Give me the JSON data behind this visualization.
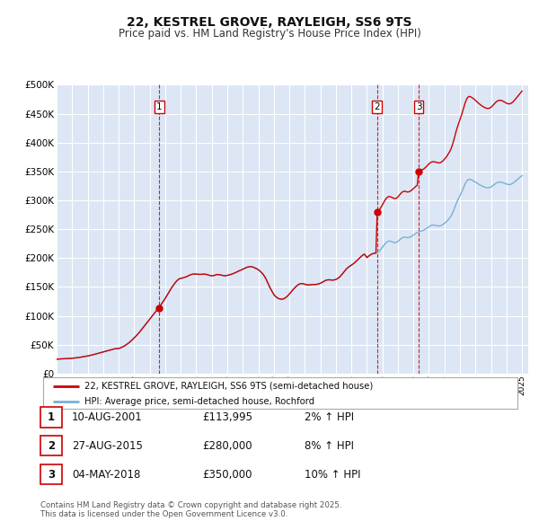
{
  "title": "22, KESTREL GROVE, RAYLEIGH, SS6 9TS",
  "subtitle": "Price paid vs. HM Land Registry's House Price Index (HPI)",
  "title_fontsize": 10,
  "subtitle_fontsize": 8.5,
  "background_color": "#ffffff",
  "plot_bg_color": "#dce6f5",
  "grid_color": "#ffffff",
  "red_line_color": "#cc0000",
  "blue_line_color": "#7ab0d4",
  "ylim": [
    0,
    500000
  ],
  "yticks": [
    0,
    50000,
    100000,
    150000,
    200000,
    250000,
    300000,
    350000,
    400000,
    450000,
    500000
  ],
  "ytick_labels": [
    "£0",
    "£50K",
    "£100K",
    "£150K",
    "£200K",
    "£250K",
    "£300K",
    "£350K",
    "£400K",
    "£450K",
    "£500K"
  ],
  "sale_dates": [
    2001.608,
    2015.648,
    2018.339
  ],
  "sale_prices": [
    113995,
    280000,
    350000
  ],
  "sale_labels": [
    "1",
    "2",
    "3"
  ],
  "vline_color": "#cc0000",
  "legend_entries": [
    "22, KESTREL GROVE, RAYLEIGH, SS6 9TS (semi-detached house)",
    "HPI: Average price, semi-detached house, Rochford"
  ],
  "table_rows": [
    [
      "1",
      "10-AUG-2001",
      "£113,995",
      "2% ↑ HPI"
    ],
    [
      "2",
      "27-AUG-2015",
      "£280,000",
      "8% ↑ HPI"
    ],
    [
      "3",
      "04-MAY-2018",
      "£350,000",
      "10% ↑ HPI"
    ]
  ],
  "footer_text": "Contains HM Land Registry data © Crown copyright and database right 2025.\nThis data is licensed under the Open Government Licence v3.0.",
  "hpi_years": [
    1995.0,
    1995.083,
    1995.167,
    1995.25,
    1995.333,
    1995.417,
    1995.5,
    1995.583,
    1995.667,
    1995.75,
    1995.833,
    1995.917,
    1996.0,
    1996.083,
    1996.167,
    1996.25,
    1996.333,
    1996.417,
    1996.5,
    1996.583,
    1996.667,
    1996.75,
    1996.833,
    1996.917,
    1997.0,
    1997.083,
    1997.167,
    1997.25,
    1997.333,
    1997.417,
    1997.5,
    1997.583,
    1997.667,
    1997.75,
    1997.833,
    1997.917,
    1998.0,
    1998.083,
    1998.167,
    1998.25,
    1998.333,
    1998.417,
    1998.5,
    1998.583,
    1998.667,
    1998.75,
    1998.833,
    1998.917,
    1999.0,
    1999.083,
    1999.167,
    1999.25,
    1999.333,
    1999.417,
    1999.5,
    1999.583,
    1999.667,
    1999.75,
    1999.833,
    1999.917,
    2000.0,
    2000.083,
    2000.167,
    2000.25,
    2000.333,
    2000.417,
    2000.5,
    2000.583,
    2000.667,
    2000.75,
    2000.833,
    2000.917,
    2001.0,
    2001.083,
    2001.167,
    2001.25,
    2001.333,
    2001.417,
    2001.5,
    2001.583,
    2001.667,
    2001.75,
    2001.833,
    2001.917,
    2002.0,
    2002.083,
    2002.167,
    2002.25,
    2002.333,
    2002.417,
    2002.5,
    2002.583,
    2002.667,
    2002.75,
    2002.833,
    2002.917,
    2003.0,
    2003.083,
    2003.167,
    2003.25,
    2003.333,
    2003.417,
    2003.5,
    2003.583,
    2003.667,
    2003.75,
    2003.833,
    2003.917,
    2004.0,
    2004.083,
    2004.167,
    2004.25,
    2004.333,
    2004.417,
    2004.5,
    2004.583,
    2004.667,
    2004.75,
    2004.833,
    2004.917,
    2005.0,
    2005.083,
    2005.167,
    2005.25,
    2005.333,
    2005.417,
    2005.5,
    2005.583,
    2005.667,
    2005.75,
    2005.833,
    2005.917,
    2006.0,
    2006.083,
    2006.167,
    2006.25,
    2006.333,
    2006.417,
    2006.5,
    2006.583,
    2006.667,
    2006.75,
    2006.833,
    2006.917,
    2007.0,
    2007.083,
    2007.167,
    2007.25,
    2007.333,
    2007.417,
    2007.5,
    2007.583,
    2007.667,
    2007.75,
    2007.833,
    2007.917,
    2008.0,
    2008.083,
    2008.167,
    2008.25,
    2008.333,
    2008.417,
    2008.5,
    2008.583,
    2008.667,
    2008.75,
    2008.833,
    2008.917,
    2009.0,
    2009.083,
    2009.167,
    2009.25,
    2009.333,
    2009.417,
    2009.5,
    2009.583,
    2009.667,
    2009.75,
    2009.833,
    2009.917,
    2010.0,
    2010.083,
    2010.167,
    2010.25,
    2010.333,
    2010.417,
    2010.5,
    2010.583,
    2010.667,
    2010.75,
    2010.833,
    2010.917,
    2011.0,
    2011.083,
    2011.167,
    2011.25,
    2011.333,
    2011.417,
    2011.5,
    2011.583,
    2011.667,
    2011.75,
    2011.833,
    2011.917,
    2012.0,
    2012.083,
    2012.167,
    2012.25,
    2012.333,
    2012.417,
    2012.5,
    2012.583,
    2012.667,
    2012.75,
    2012.833,
    2012.917,
    2013.0,
    2013.083,
    2013.167,
    2013.25,
    2013.333,
    2013.417,
    2013.5,
    2013.583,
    2013.667,
    2013.75,
    2013.833,
    2013.917,
    2014.0,
    2014.083,
    2014.167,
    2014.25,
    2014.333,
    2014.417,
    2014.5,
    2014.583,
    2014.667,
    2014.75,
    2014.833,
    2014.917,
    2015.0,
    2015.083,
    2015.167,
    2015.25,
    2015.333,
    2015.417,
    2015.5,
    2015.583,
    2015.667,
    2015.75,
    2015.833,
    2015.917,
    2016.0,
    2016.083,
    2016.167,
    2016.25,
    2016.333,
    2016.417,
    2016.5,
    2016.583,
    2016.667,
    2016.75,
    2016.833,
    2016.917,
    2017.0,
    2017.083,
    2017.167,
    2017.25,
    2017.333,
    2017.417,
    2017.5,
    2017.583,
    2017.667,
    2017.75,
    2017.833,
    2017.917,
    2018.0,
    2018.083,
    2018.167,
    2018.25,
    2018.333,
    2018.417,
    2018.5,
    2018.583,
    2018.667,
    2018.75,
    2018.833,
    2018.917,
    2019.0,
    2019.083,
    2019.167,
    2019.25,
    2019.333,
    2019.417,
    2019.5,
    2019.583,
    2019.667,
    2019.75,
    2019.833,
    2019.917,
    2020.0,
    2020.083,
    2020.167,
    2020.25,
    2020.333,
    2020.417,
    2020.5,
    2020.583,
    2020.667,
    2020.75,
    2020.833,
    2020.917,
    2021.0,
    2021.083,
    2021.167,
    2021.25,
    2021.333,
    2021.417,
    2021.5,
    2021.583,
    2021.667,
    2021.75,
    2021.833,
    2021.917,
    2022.0,
    2022.083,
    2022.167,
    2022.25,
    2022.333,
    2022.417,
    2022.5,
    2022.583,
    2022.667,
    2022.75,
    2022.833,
    2022.917,
    2023.0,
    2023.083,
    2023.167,
    2023.25,
    2023.333,
    2023.417,
    2023.5,
    2023.583,
    2023.667,
    2023.75,
    2023.833,
    2023.917,
    2024.0,
    2024.083,
    2024.167,
    2024.25,
    2024.333,
    2024.417,
    2024.5,
    2024.583,
    2024.667,
    2024.75,
    2024.833,
    2024.917,
    2025.0
  ],
  "hpi_raw": [
    57,
    57.5,
    57.9,
    58.2,
    58.5,
    58.8,
    59.0,
    59.2,
    59.4,
    59.6,
    59.9,
    60.2,
    60.7,
    61.1,
    61.8,
    62.3,
    63.0,
    63.7,
    64.5,
    65.3,
    66.2,
    67.1,
    68.0,
    68.9,
    69.8,
    70.8,
    72.0,
    73.1,
    74.5,
    75.9,
    77.3,
    78.6,
    80.0,
    81.4,
    82.8,
    84.3,
    85.7,
    87.2,
    88.7,
    90.2,
    91.7,
    93.0,
    94.5,
    95.8,
    97.0,
    98.2,
    98.8,
    99.0,
    99.5,
    101.0,
    103.0,
    105.5,
    108.0,
    111.0,
    114.5,
    118.0,
    122.0,
    126.5,
    131.0,
    136.0,
    141.0,
    146.0,
    151.5,
    157.0,
    163.0,
    169.5,
    176.0,
    182.5,
    189.0,
    195.5,
    202.0,
    208.5,
    215.0,
    221.5,
    228.0,
    234.5,
    241.0,
    247.0,
    253.5,
    260.0,
    267.0,
    274.0,
    281.5,
    289.0,
    297.0,
    305.5,
    314.0,
    322.5,
    331.0,
    339.5,
    347.0,
    354.0,
    361.0,
    366.5,
    371.5,
    374.5,
    376.0,
    377.0,
    378.5,
    380.0,
    382.0,
    384.0,
    386.5,
    389.0,
    391.0,
    392.5,
    393.5,
    393.5,
    393.0,
    392.5,
    392.0,
    392.0,
    392.0,
    392.5,
    393.0,
    392.5,
    391.5,
    390.0,
    388.5,
    387.0,
    386.5,
    387.0,
    388.0,
    389.5,
    391.5,
    391.0,
    390.5,
    389.5,
    388.5,
    387.0,
    386.5,
    387.0,
    388.0,
    389.0,
    390.5,
    392.0,
    394.0,
    396.0,
    398.0,
    400.5,
    403.0,
    405.5,
    407.5,
    410.0,
    412.5,
    415.0,
    417.5,
    419.5,
    421.0,
    422.0,
    422.5,
    422.0,
    420.5,
    418.5,
    416.0,
    413.5,
    410.5,
    406.5,
    401.5,
    396.5,
    390.5,
    382.5,
    373.5,
    362.5,
    351.5,
    340.5,
    330.5,
    321.5,
    313.0,
    306.5,
    302.0,
    298.5,
    296.0,
    294.5,
    294.0,
    294.5,
    296.5,
    299.5,
    303.5,
    308.5,
    314.5,
    320.5,
    326.5,
    332.5,
    338.0,
    343.0,
    347.5,
    351.5,
    354.0,
    355.5,
    355.5,
    354.5,
    353.0,
    351.5,
    350.5,
    350.0,
    350.5,
    351.5,
    352.0,
    352.0,
    352.0,
    352.5,
    353.5,
    355.0,
    357.0,
    359.5,
    362.5,
    365.5,
    368.0,
    369.5,
    370.5,
    370.5,
    370.0,
    369.5,
    369.5,
    370.5,
    372.0,
    374.5,
    378.0,
    382.0,
    387.5,
    393.5,
    400.0,
    406.5,
    412.5,
    417.5,
    421.5,
    425.0,
    428.0,
    431.5,
    435.5,
    440.0,
    445.0,
    450.0,
    455.0,
    460.0,
    464.5,
    468.5,
    472.0,
    466.0,
    458.5,
    462.5,
    466.5,
    470.0,
    472.5,
    474.5,
    475.5,
    476.0,
    478.0,
    481.5,
    486.5,
    492.0,
    498.5,
    505.5,
    512.5,
    518.0,
    521.5,
    523.5,
    523.0,
    521.5,
    519.5,
    517.5,
    517.5,
    519.0,
    522.0,
    527.0,
    531.5,
    535.5,
    538.0,
    539.0,
    538.5,
    537.0,
    537.0,
    538.0,
    540.5,
    543.5,
    547.0,
    550.5,
    554.0,
    557.0,
    559.5,
    561.5,
    563.0,
    564.5,
    566.5,
    569.5,
    573.0,
    576.5,
    580.5,
    583.5,
    585.5,
    586.5,
    586.5,
    585.5,
    584.5,
    583.5,
    583.0,
    584.0,
    586.5,
    589.5,
    593.5,
    597.5,
    602.5,
    608.0,
    614.0,
    621.5,
    631.0,
    643.0,
    656.5,
    670.0,
    682.0,
    692.5,
    703.0,
    713.5,
    725.0,
    737.5,
    749.0,
    758.5,
    764.5,
    767.0,
    766.5,
    764.5,
    762.0,
    759.5,
    756.0,
    753.0,
    749.5,
    746.5,
    743.5,
    741.0,
    738.5,
    736.5,
    735.0,
    734.0,
    734.0,
    735.0,
    737.0,
    740.5,
    744.5,
    748.5,
    752.0,
    754.5,
    756.0,
    756.5,
    756.0,
    754.5,
    752.5,
    750.5,
    748.5,
    747.0,
    746.5,
    747.0,
    749.0,
    752.0,
    756.0,
    760.0,
    764.5,
    769.0,
    773.5,
    778.0,
    782.0
  ]
}
